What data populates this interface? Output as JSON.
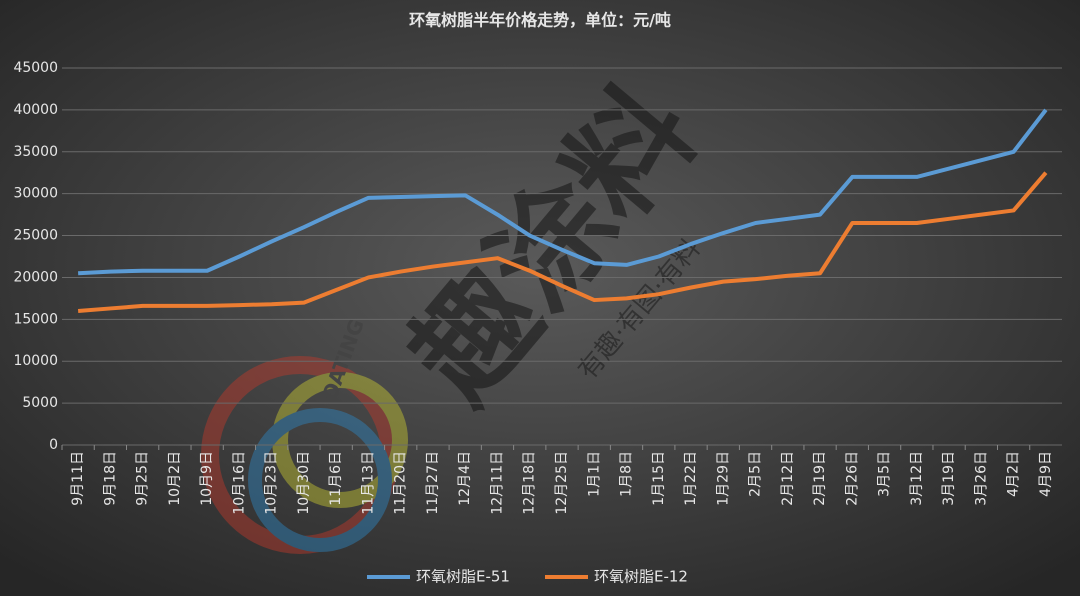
{
  "chart_data": {
    "type": "line",
    "title": "环氧树脂半年价格走势，单位：元/吨",
    "watermark": "趣涂料",
    "watermark_sub": "有趣·有图·有料",
    "logo_text": "OATING",
    "categories": [
      "9月11日",
      "9月18日",
      "9月25日",
      "10月2日",
      "10月9日",
      "10月16日",
      "10月23日",
      "10月30日",
      "11月6日",
      "11月13日",
      "11月20日",
      "11月27日",
      "12月4日",
      "12月11日",
      "12月18日",
      "12月25日",
      "1月1日",
      "1月8日",
      "1月15日",
      "1月22日",
      "1月29日",
      "2月5日",
      "2月12日",
      "2月19日",
      "2月26日",
      "3月5日",
      "3月12日",
      "3月19日",
      "3月26日",
      "4月2日",
      "4月9日"
    ],
    "series": [
      {
        "name": "环氧树脂E-51",
        "color": "#5b9bd5",
        "values": [
          20500,
          20700,
          20800,
          20800,
          20800,
          22500,
          24300,
          26000,
          27800,
          29500,
          29600,
          29700,
          29800,
          27500,
          25000,
          23300,
          21700,
          21500,
          22500,
          24000,
          25300,
          26500,
          27000,
          27500,
          32000,
          32000,
          32000,
          33000,
          34000,
          35000,
          40000
        ]
      },
      {
        "name": "环氧树脂E-12",
        "color": "#ed7d31",
        "values": [
          16000,
          16300,
          16600,
          16600,
          16600,
          16700,
          16800,
          17000,
          18500,
          20000,
          20700,
          21300,
          21800,
          22300,
          20800,
          19000,
          17300,
          17500,
          18000,
          18800,
          19500,
          19800,
          20200,
          20500,
          26500,
          26500,
          26500,
          27000,
          27500,
          28000,
          32500
        ]
      }
    ],
    "ylim": [
      0,
      45000
    ],
    "yticks": [
      0,
      5000,
      10000,
      15000,
      20000,
      25000,
      30000,
      35000,
      40000,
      45000
    ],
    "grid": true
  }
}
